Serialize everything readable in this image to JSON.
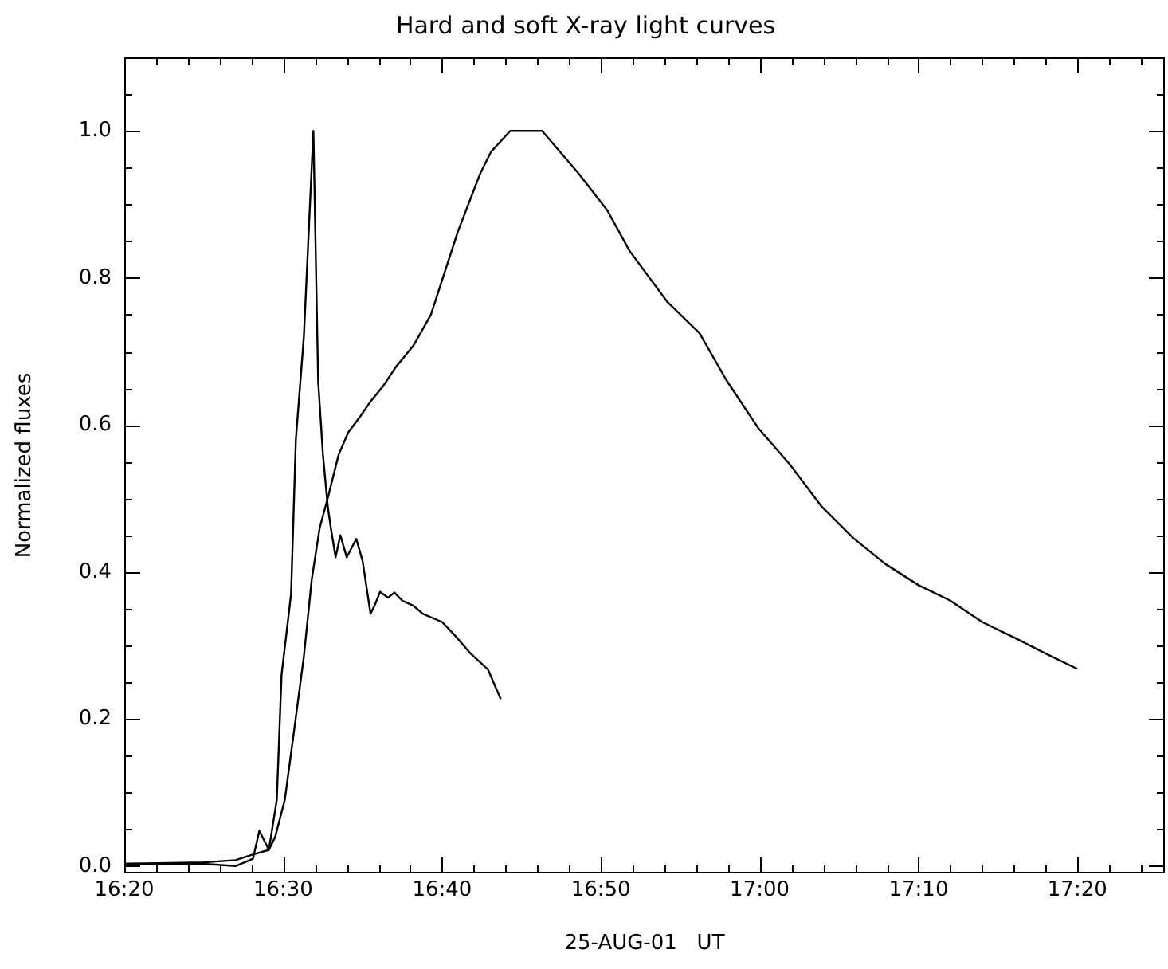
{
  "chart_data": {
    "type": "line",
    "title": "Hard and soft X-ray light curves",
    "xlabel": "25-AUG-01   UT",
    "ylabel": "Normalized fluxes",
    "xlim": [
      16.3333,
      17.425
    ],
    "ylim": [
      -0.01,
      1.1
    ],
    "xticks": [
      {
        "value": 16.3333,
        "label": "16:20"
      },
      {
        "value": 16.3667,
        "label": null
      },
      {
        "value": 16.4,
        "label": null
      },
      {
        "value": 16.4333,
        "label": null
      },
      {
        "value": 16.4667,
        "label": null
      },
      {
        "value": 16.5,
        "label": "16:30"
      },
      {
        "value": 16.5333,
        "label": null
      },
      {
        "value": 16.5667,
        "label": null
      },
      {
        "value": 16.6,
        "label": null
      },
      {
        "value": 16.6333,
        "label": null
      },
      {
        "value": 16.6667,
        "label": "16:40"
      },
      {
        "value": 16.7,
        "label": null
      },
      {
        "value": 16.7333,
        "label": null
      },
      {
        "value": 16.7667,
        "label": null
      },
      {
        "value": 16.8,
        "label": null
      },
      {
        "value": 16.8333,
        "label": "16:50"
      },
      {
        "value": 16.8667,
        "label": null
      },
      {
        "value": 16.9,
        "label": null
      },
      {
        "value": 16.9333,
        "label": null
      },
      {
        "value": 16.9667,
        "label": null
      },
      {
        "value": 17.0,
        "label": "17:00"
      },
      {
        "value": 17.0333,
        "label": null
      },
      {
        "value": 17.0667,
        "label": null
      },
      {
        "value": 17.1,
        "label": null
      },
      {
        "value": 17.1333,
        "label": null
      },
      {
        "value": 17.1667,
        "label": "17:10"
      },
      {
        "value": 17.2,
        "label": null
      },
      {
        "value": 17.2333,
        "label": null
      },
      {
        "value": 17.2667,
        "label": null
      },
      {
        "value": 17.3,
        "label": null
      },
      {
        "value": 17.3333,
        "label": "17:20"
      },
      {
        "value": 17.3667,
        "label": null
      },
      {
        "value": 17.4,
        "label": null
      }
    ],
    "yticks": [
      {
        "value": 0,
        "label": "0.0"
      },
      {
        "value": 0.05,
        "label": null
      },
      {
        "value": 0.1,
        "label": null
      },
      {
        "value": 0.15,
        "label": null
      },
      {
        "value": 0.2,
        "label": "0.2"
      },
      {
        "value": 0.25,
        "label": null
      },
      {
        "value": 0.3,
        "label": null
      },
      {
        "value": 0.35,
        "label": null
      },
      {
        "value": 0.4,
        "label": "0.4"
      },
      {
        "value": 0.45,
        "label": null
      },
      {
        "value": 0.5,
        "label": null
      },
      {
        "value": 0.55,
        "label": null
      },
      {
        "value": 0.6,
        "label": "0.6"
      },
      {
        "value": 0.65,
        "label": null
      },
      {
        "value": 0.7,
        "label": null
      },
      {
        "value": 0.75,
        "label": null
      },
      {
        "value": 0.8,
        "label": "0.8"
      },
      {
        "value": 0.85,
        "label": null
      },
      {
        "value": 0.9,
        "label": null
      },
      {
        "value": 0.95,
        "label": null
      },
      {
        "value": 1.0,
        "label": "1.0"
      },
      {
        "value": 1.05,
        "label": null
      }
    ],
    "grid": false,
    "legend": false,
    "marker": "none",
    "line_style": "solid",
    "series": [
      {
        "color": "#000000",
        "x": [
          16.3333,
          16.4167,
          16.45,
          16.4683,
          16.475,
          16.485,
          16.4933,
          16.4983,
          16.5083,
          16.5133,
          16.5217,
          16.5317,
          16.5367,
          16.5417,
          16.5467,
          16.55,
          16.555,
          16.56,
          16.5667,
          16.5767,
          16.5833,
          16.5917,
          16.5967,
          16.6017,
          16.61,
          16.6167,
          16.625,
          16.6367,
          16.6467,
          16.6667,
          16.68,
          16.6967,
          16.715,
          16.7283
        ],
        "values": [
          0.003,
          0.003,
          0.0,
          0.01,
          0.048,
          0.022,
          0.09,
          0.26,
          0.37,
          0.58,
          0.72,
          1.0,
          0.66,
          0.56,
          0.49,
          0.46,
          0.42,
          0.45,
          0.42,
          0.445,
          0.415,
          0.343,
          0.357,
          0.373,
          0.365,
          0.372,
          0.361,
          0.354,
          0.343,
          0.332,
          0.314,
          0.289,
          0.267,
          0.227
        ]
      },
      {
        "color": "#000000",
        "x": [
          16.3333,
          16.4167,
          16.45,
          16.4667,
          16.485,
          16.4917,
          16.5017,
          16.51,
          16.5217,
          16.53,
          16.5383,
          16.5467,
          16.5583,
          16.5683,
          16.58,
          16.5917,
          16.605,
          16.6183,
          16.6367,
          16.655,
          16.6833,
          16.7067,
          16.7183,
          16.7383,
          16.7717,
          16.81,
          16.84,
          16.8633,
          16.9033,
          16.9367,
          16.965,
          16.9983,
          17.0317,
          17.065,
          17.0983,
          17.1317,
          17.1667,
          17.2,
          17.2333,
          17.2667,
          17.3,
          17.3333
        ],
        "values": [
          0.003,
          0.005,
          0.008,
          0.015,
          0.022,
          0.04,
          0.09,
          0.17,
          0.285,
          0.39,
          0.46,
          0.5,
          0.56,
          0.59,
          0.61,
          0.632,
          0.653,
          0.679,
          0.708,
          0.75,
          0.863,
          0.942,
          0.972,
          1.0,
          1.0,
          0.942,
          0.892,
          0.837,
          0.767,
          0.725,
          0.661,
          0.596,
          0.546,
          0.489,
          0.446,
          0.411,
          0.382,
          0.361,
          0.332,
          0.311,
          0.289,
          0.268
        ]
      }
    ]
  }
}
